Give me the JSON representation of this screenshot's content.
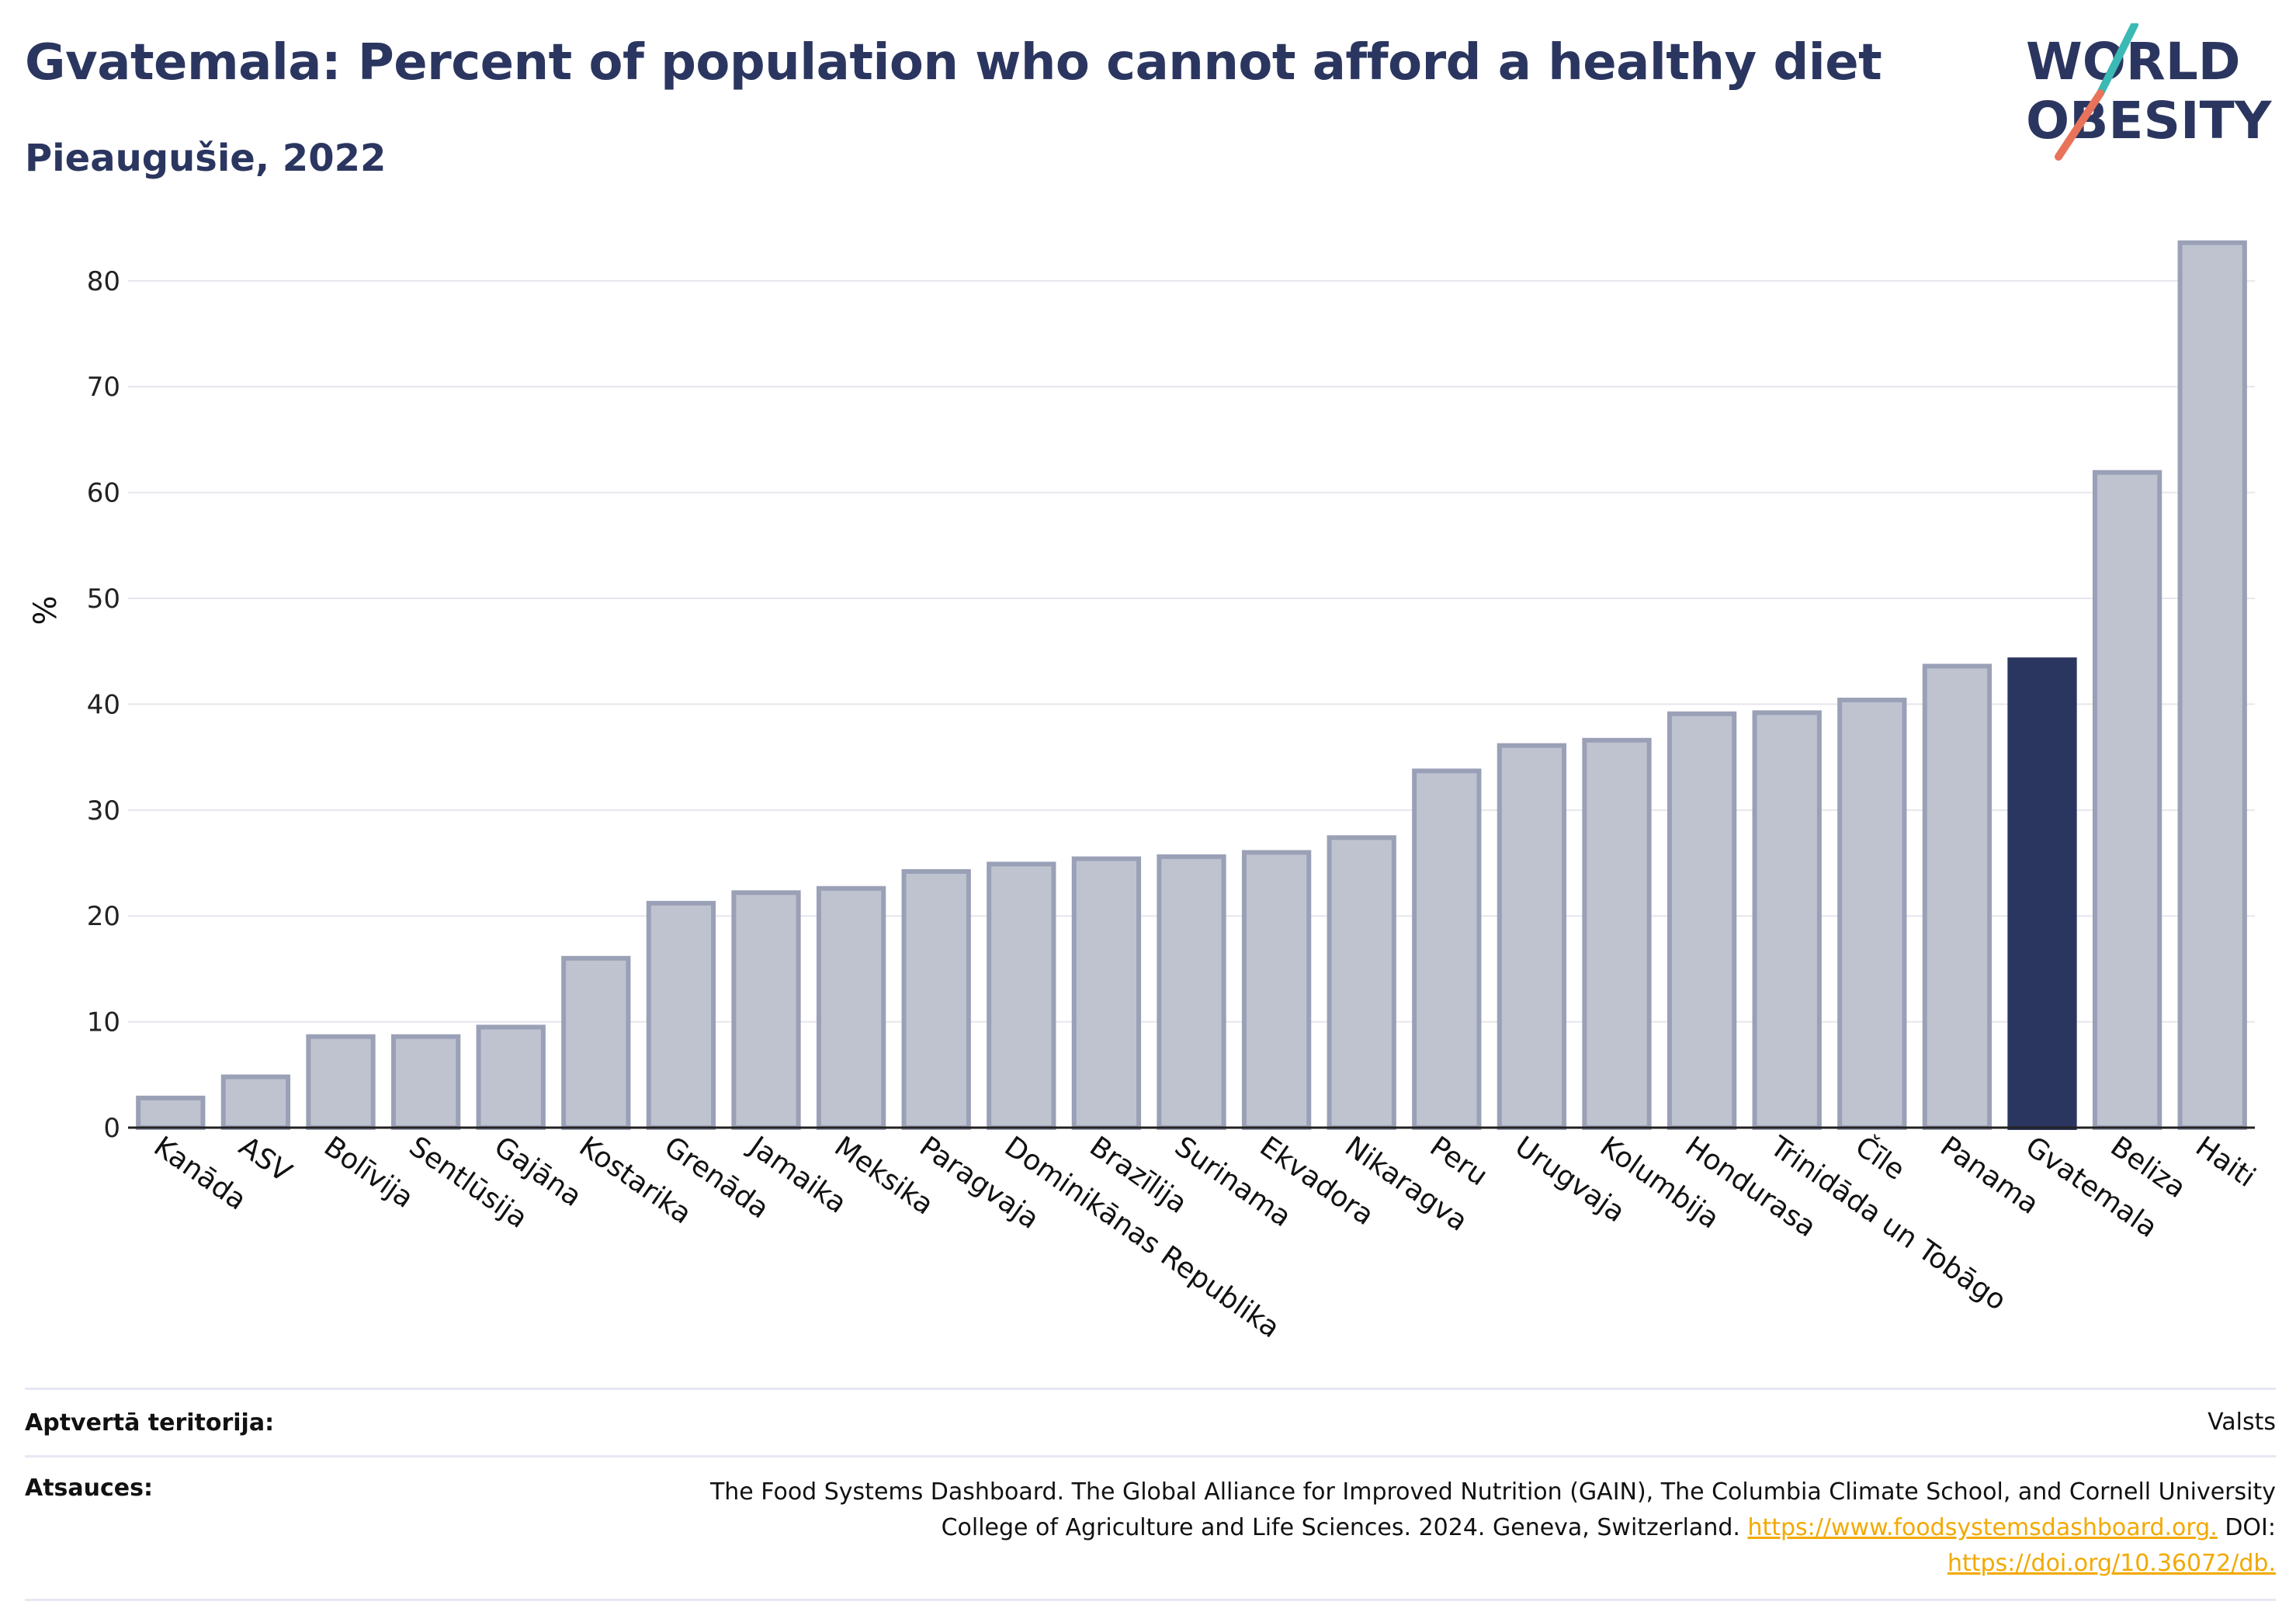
{
  "header": {
    "title": "Gvatemala: Percent of population who cannot afford a healthy diet",
    "subtitle": "Pieaugušie, 2022"
  },
  "logo": {
    "line1": "WORLD",
    "line2": "OBESITY",
    "colors": {
      "text": "#2b3660",
      "slash_top": "#3bb9b5",
      "slash_bottom": "#e8735a"
    }
  },
  "colors": {
    "bar": "#bfc3d0",
    "bar_border": "#9aa0b6",
    "highlight": "#2b3660",
    "grid": "#e6e6ee",
    "axis": "#222222"
  },
  "chart_data": {
    "type": "bar",
    "title": "Gvatemala: Percent of population who cannot afford a healthy diet",
    "subtitle": "Pieaugušie, 2022",
    "xlabel": "",
    "ylabel": "%",
    "ylim": [
      0,
      86
    ],
    "yticks": [
      0,
      10,
      20,
      30,
      40,
      50,
      60,
      70,
      80
    ],
    "grid": true,
    "highlight": "Gvatemala",
    "categories": [
      "Kanāda",
      "ASV",
      "Bolīvija",
      "Sentlūsija",
      "Gajāna",
      "Kostarika",
      "Grenāda",
      "Jamaika",
      "Meksika",
      "Paragvaja",
      "Dominikānas Republika",
      "Brazīlija",
      "Surinama",
      "Ekvadora",
      "Nikaragva",
      "Peru",
      "Urugvaja",
      "Kolumbija",
      "Hondurasa",
      "Trinidāda un Tobāgo",
      "Čīle",
      "Panama",
      "Gvatemala",
      "Beliza",
      "Haiti"
    ],
    "values": [
      2.8,
      4.8,
      8.6,
      8.6,
      9.5,
      16,
      21.2,
      22.2,
      22.6,
      24.2,
      24.9,
      25.4,
      25.6,
      26,
      27.4,
      33.7,
      36.1,
      36.6,
      39.1,
      39.2,
      40.4,
      43.6,
      44.2,
      61.9,
      83.6
    ]
  },
  "footer": {
    "territory_label": "Aptvertā teritorija:",
    "territory_value": "Valsts",
    "sources_label": "Atsauces:",
    "sources_line1": "The Food Systems Dashboard. The Global Alliance for Improved Nutrition (GAIN), The Columbia Climate School, and Cornell University",
    "sources_line2_text": "College of Agriculture and Life Sciences. 2024. Geneva, Switzerland.",
    "sources_link1": "https://www.foodsystemsdashboard.org.",
    "sources_doi_label": "DOI:",
    "sources_link2": "https://doi.org/10.36072/db."
  }
}
